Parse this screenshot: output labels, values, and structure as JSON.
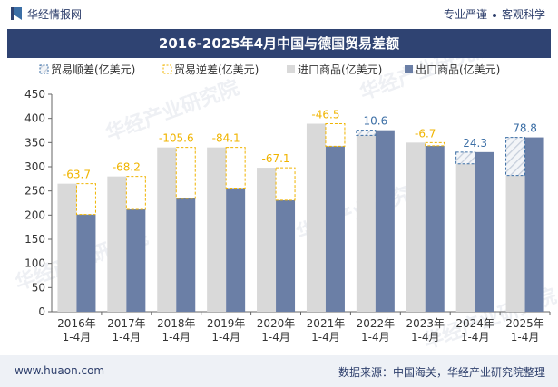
{
  "header": {
    "brand": "华经情报网",
    "tag1": "专业严谨",
    "tag2": "客观科学"
  },
  "watermark": "华经产业研究院",
  "footer": {
    "url": "www.huaon.com",
    "source": "数据来源：中国海关，华经产业研究院整理"
  },
  "colors": {
    "import": "#d9d9d9",
    "export": "#6b7fa6",
    "surplus": "#3b6ea5",
    "deficit": "#f0b400"
  },
  "chart_data": {
    "type": "bar",
    "title": "2016-2025年4月中国与德国贸易差额",
    "ylim": [
      0,
      450
    ],
    "yticks": [
      0,
      50,
      100,
      150,
      200,
      250,
      300,
      350,
      400,
      450
    ],
    "categories": [
      [
        "2016年",
        "1-4月"
      ],
      [
        "2017年",
        "1-4月"
      ],
      [
        "2018年",
        "1-4月"
      ],
      [
        "2019年",
        "1-4月"
      ],
      [
        "2020年",
        "1-4月"
      ],
      [
        "2021年",
        "1-4月"
      ],
      [
        "2022年",
        "1-4月"
      ],
      [
        "2023年",
        "1-4月"
      ],
      [
        "2024年",
        "1-4月"
      ],
      [
        "2025年",
        "1-4月"
      ]
    ],
    "legend": [
      "贸易顺差(亿美元)",
      "贸易逆差(亿美元)",
      "进口商品(亿美元)",
      "出口商品(亿美元)"
    ],
    "series": [
      {
        "name": "进口商品(亿美元)",
        "values": [
          265,
          280,
          340,
          340,
          298,
          389,
          365,
          350,
          306,
          282
        ]
      },
      {
        "name": "出口商品(亿美元)",
        "values": [
          201.3,
          211.8,
          234.4,
          255.9,
          230.9,
          342.5,
          375.6,
          343.3,
          330.3,
          360.8
        ]
      }
    ],
    "balance": [
      -63.7,
      -68.2,
      -105.6,
      -84.1,
      -67.1,
      -46.5,
      10.6,
      -6.7,
      24.3,
      78.8
    ],
    "balance_labels": [
      "-63.7",
      "-68.2",
      "-105.6",
      "-84.1",
      "-67.1",
      "-46.5",
      "10.6",
      "-6.7",
      "24.3",
      "78.8"
    ]
  }
}
